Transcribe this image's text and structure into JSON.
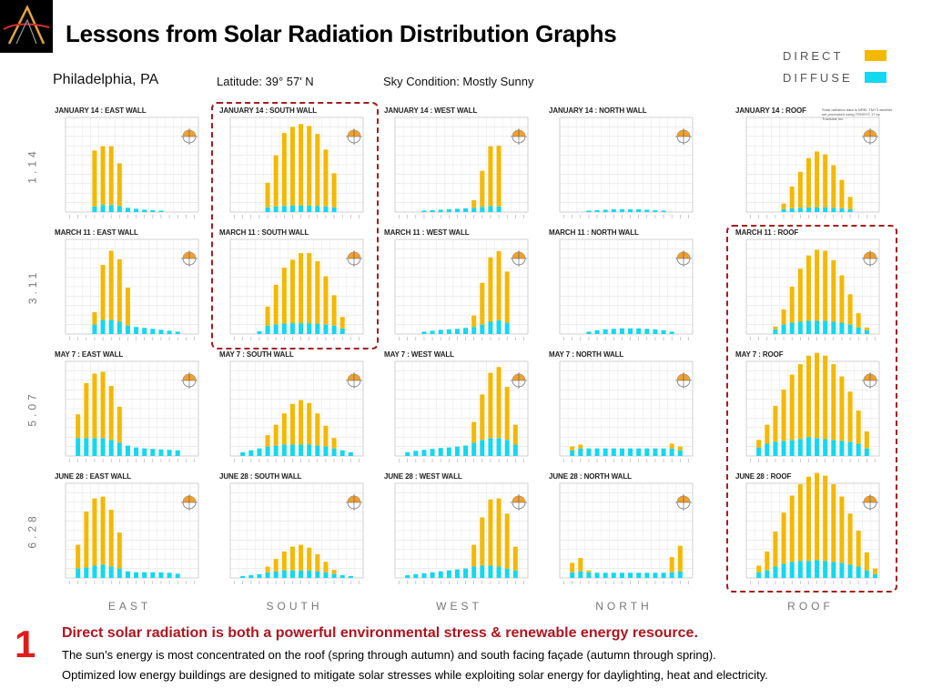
{
  "title": "Lessons from Solar Radiation Distribution Graphs",
  "legend": [
    {
      "label": "DIRECT",
      "color": "#F5B800"
    },
    {
      "label": "DIFFUSE",
      "color": "#14D7F0"
    }
  ],
  "header": {
    "city": "Philadelphia, PA",
    "latitude": "Latitude: 39° 57' N",
    "sky": "Sky Condition: Mostly Sunny"
  },
  "roof_note": "Solar radiation data is NREL TMY3 weather set processed using TRNSYS 17 by Transolar Inc.",
  "row_labels": [
    "1.14",
    "3.11",
    "5.07",
    "6.28"
  ],
  "column_labels": [
    "EAST",
    "SOUTH",
    "WEST",
    "NORTH",
    "ROOF"
  ],
  "message": {
    "number": "1",
    "headline": "Direct solar radiation is both a powerful environmental stress & renewable energy resource.",
    "line1": "The sun’s energy is most concentrated on the roof (spring through autumn) and south facing façade (autumn through spring).",
    "line2": "Optimized low energy buildings are designed to mitigate solar stresses while exploiting solar energy for daylighting, heat and electricity."
  },
  "colors": {
    "direct": "#F5B800",
    "diffuse": "#14D7F0",
    "highlight": "#A61C1C",
    "accent": "#E01B1B"
  },
  "chart_data": [
    {
      "type": "bar",
      "title": "JANUARY 14 : EAST WALL",
      "ylim": [
        0,
        1000
      ],
      "series": [
        {
          "name": "DIRECT",
          "values": [
            0,
            0,
            0,
            590,
            620,
            620,
            450,
            0,
            0,
            0,
            0,
            0,
            0,
            0,
            0,
            0
          ]
        },
        {
          "name": "DIFFUSE",
          "values": [
            0,
            0,
            0,
            60,
            75,
            75,
            65,
            45,
            35,
            25,
            20,
            15,
            0,
            0,
            0,
            0
          ]
        }
      ]
    },
    {
      "type": "bar",
      "title": "JANUARY 14 : SOUTH WALL",
      "ylim": [
        0,
        1000
      ],
      "series": [
        {
          "name": "DIRECT",
          "values": [
            0,
            0,
            0,
            0,
            260,
            540,
            770,
            830,
            860,
            840,
            760,
            600,
            360,
            0,
            0,
            0
          ]
        },
        {
          "name": "DIFFUSE",
          "values": [
            0,
            0,
            0,
            0,
            50,
            60,
            65,
            70,
            70,
            70,
            65,
            60,
            50,
            0,
            0,
            0
          ]
        }
      ]
    },
    {
      "type": "bar",
      "title": "JANUARY 14 : WEST WALL",
      "ylim": [
        0,
        1000
      ],
      "series": [
        {
          "name": "DIRECT",
          "values": [
            0,
            0,
            0,
            0,
            0,
            0,
            0,
            0,
            0,
            80,
            380,
            630,
            640,
            0,
            0,
            0
          ]
        },
        {
          "name": "DIFFUSE",
          "values": [
            0,
            0,
            0,
            15,
            20,
            25,
            30,
            35,
            40,
            45,
            55,
            65,
            60,
            0,
            0,
            0
          ]
        }
      ]
    },
    {
      "type": "bar",
      "title": "JANUARY 14 : NORTH WALL",
      "ylim": [
        0,
        1000
      ],
      "series": [
        {
          "name": "DIRECT",
          "values": [
            0,
            0,
            0,
            0,
            0,
            0,
            0,
            0,
            0,
            0,
            0,
            0,
            0,
            0,
            0,
            0
          ]
        },
        {
          "name": "DIFFUSE",
          "values": [
            0,
            0,
            0,
            15,
            20,
            25,
            30,
            30,
            30,
            30,
            25,
            20,
            15,
            0,
            0,
            0
          ]
        }
      ]
    },
    {
      "type": "bar",
      "title": "JANUARY 14 : ROOF",
      "ylim": [
        0,
        1000
      ],
      "series": [
        {
          "name": "DIRECT",
          "values": [
            0,
            0,
            0,
            0,
            60,
            230,
            380,
            520,
            590,
            560,
            450,
            300,
            130,
            0,
            0,
            0
          ]
        },
        {
          "name": "DIFFUSE",
          "values": [
            0,
            0,
            0,
            0,
            30,
            40,
            45,
            50,
            50,
            50,
            45,
            40,
            30,
            0,
            0,
            0
          ]
        }
      ]
    },
    {
      "type": "bar",
      "title": "MARCH 11 : EAST WALL",
      "ylim": [
        0,
        1000
      ],
      "series": [
        {
          "name": "DIRECT",
          "values": [
            0,
            0,
            0,
            130,
            580,
            730,
            660,
            400,
            0,
            0,
            0,
            0,
            0,
            0,
            0,
            0
          ]
        },
        {
          "name": "DIFFUSE",
          "values": [
            0,
            0,
            0,
            100,
            150,
            150,
            130,
            90,
            75,
            65,
            55,
            45,
            35,
            25,
            0,
            0
          ]
        }
      ]
    },
    {
      "type": "bar",
      "title": "MARCH 11 : SOUTH WALL",
      "ylim": [
        0,
        1000
      ],
      "series": [
        {
          "name": "DIRECT",
          "values": [
            0,
            0,
            0,
            0,
            200,
            420,
            590,
            670,
            740,
            740,
            660,
            510,
            320,
            120,
            0,
            0
          ]
        },
        {
          "name": "DIFFUSE",
          "values": [
            0,
            0,
            0,
            30,
            90,
            100,
            110,
            115,
            115,
            115,
            110,
            100,
            90,
            60,
            0,
            0
          ]
        }
      ]
    },
    {
      "type": "bar",
      "title": "MARCH 11 : WEST WALL",
      "ylim": [
        0,
        1000
      ],
      "series": [
        {
          "name": "DIRECT",
          "values": [
            0,
            0,
            0,
            0,
            0,
            0,
            0,
            0,
            0,
            120,
            440,
            680,
            730,
            540,
            0,
            0
          ]
        },
        {
          "name": "DIFFUSE",
          "values": [
            0,
            0,
            0,
            25,
            35,
            45,
            50,
            55,
            65,
            75,
            100,
            130,
            145,
            120,
            0,
            0
          ]
        }
      ]
    },
    {
      "type": "bar",
      "title": "MARCH 11 : NORTH WALL",
      "ylim": [
        0,
        1000
      ],
      "series": [
        {
          "name": "DIRECT",
          "values": [
            0,
            0,
            0,
            0,
            0,
            0,
            0,
            0,
            0,
            0,
            0,
            0,
            0,
            0,
            0,
            0
          ]
        },
        {
          "name": "DIFFUSE",
          "values": [
            0,
            0,
            0,
            25,
            40,
            50,
            55,
            60,
            60,
            60,
            55,
            50,
            40,
            25,
            0,
            0
          ]
        }
      ]
    },
    {
      "type": "bar",
      "title": "MARCH 11 : ROOF",
      "ylim": [
        0,
        1000
      ],
      "series": [
        {
          "name": "DIRECT",
          "values": [
            0,
            0,
            0,
            30,
            160,
            380,
            560,
            690,
            750,
            740,
            650,
            500,
            320,
            150,
            30,
            0
          ]
        },
        {
          "name": "DIFFUSE",
          "values": [
            0,
            0,
            0,
            50,
            100,
            120,
            130,
            140,
            140,
            140,
            130,
            120,
            100,
            70,
            40,
            0
          ]
        }
      ]
    },
    {
      "type": "bar",
      "title": "MAY 7 : EAST WALL",
      "ylim": [
        0,
        1000
      ],
      "series": [
        {
          "name": "DIRECT",
          "values": [
            0,
            250,
            580,
            680,
            700,
            570,
            380,
            0,
            0,
            0,
            0,
            0,
            0,
            0,
            0,
            0
          ]
        },
        {
          "name": "DIFFUSE",
          "values": [
            0,
            190,
            190,
            190,
            190,
            170,
            140,
            110,
            90,
            80,
            75,
            70,
            65,
            60,
            0,
            0
          ]
        }
      ]
    },
    {
      "type": "bar",
      "title": "MAY 7 : SOUTH WALL",
      "ylim": [
        0,
        1000
      ],
      "series": [
        {
          "name": "DIRECT",
          "values": [
            0,
            0,
            0,
            0,
            120,
            220,
            330,
            430,
            470,
            440,
            340,
            220,
            110,
            0,
            0,
            0
          ]
        },
        {
          "name": "DIFFUSE",
          "values": [
            0,
            40,
            60,
            80,
            100,
            110,
            120,
            120,
            120,
            120,
            110,
            100,
            80,
            60,
            40,
            0
          ]
        }
      ]
    },
    {
      "type": "bar",
      "title": "MAY 7 : WEST WALL",
      "ylim": [
        0,
        1000
      ],
      "series": [
        {
          "name": "DIRECT",
          "values": [
            0,
            0,
            0,
            0,
            0,
            0,
            0,
            0,
            0,
            220,
            480,
            690,
            750,
            560,
            210,
            0
          ]
        },
        {
          "name": "DIFFUSE",
          "values": [
            0,
            40,
            55,
            65,
            75,
            85,
            90,
            100,
            110,
            140,
            170,
            190,
            190,
            170,
            120,
            0
          ]
        }
      ]
    },
    {
      "type": "bar",
      "title": "MAY 7 : NORTH WALL",
      "ylim": [
        0,
        1000
      ],
      "series": [
        {
          "name": "DIRECT",
          "values": [
            0,
            40,
            40,
            0,
            0,
            0,
            0,
            0,
            0,
            0,
            0,
            0,
            0,
            50,
            40,
            0
          ]
        },
        {
          "name": "DIFFUSE",
          "values": [
            0,
            60,
            80,
            80,
            80,
            80,
            80,
            80,
            80,
            80,
            80,
            80,
            80,
            80,
            60,
            0
          ]
        }
      ]
    },
    {
      "type": "bar",
      "title": "MAY 7 : ROOF",
      "ylim": [
        0,
        1000
      ],
      "series": [
        {
          "name": "DIRECT",
          "values": [
            0,
            80,
            200,
            380,
            540,
            690,
            790,
            860,
            900,
            880,
            800,
            680,
            530,
            350,
            180,
            0
          ]
        },
        {
          "name": "DIFFUSE",
          "values": [
            0,
            90,
            130,
            150,
            160,
            170,
            180,
            200,
            190,
            180,
            170,
            160,
            150,
            130,
            80,
            0
          ]
        }
      ]
    },
    {
      "type": "bar",
      "title": "JUNE 28 : EAST WALL",
      "ylim": [
        0,
        1000
      ],
      "series": [
        {
          "name": "DIRECT",
          "values": [
            0,
            250,
            590,
            710,
            720,
            600,
            380,
            0,
            0,
            0,
            0,
            0,
            0,
            0,
            0,
            0
          ]
        },
        {
          "name": "DIFFUSE",
          "values": [
            0,
            100,
            110,
            130,
            140,
            120,
            100,
            70,
            60,
            60,
            60,
            60,
            55,
            45,
            0,
            0
          ]
        }
      ]
    },
    {
      "type": "bar",
      "title": "JUNE 28 : SOUTH WALL",
      "ylim": [
        0,
        1000
      ],
      "series": [
        {
          "name": "DIRECT",
          "values": [
            0,
            0,
            0,
            0,
            60,
            130,
            200,
            250,
            270,
            240,
            180,
            110,
            40,
            0,
            0,
            0
          ]
        },
        {
          "name": "DIFFUSE",
          "values": [
            0,
            20,
            30,
            40,
            60,
            70,
            80,
            80,
            80,
            80,
            70,
            60,
            45,
            30,
            20,
            0
          ]
        }
      ]
    },
    {
      "type": "bar",
      "title": "JUNE 28 : WEST WALL",
      "ylim": [
        0,
        1000
      ],
      "series": [
        {
          "name": "DIRECT",
          "values": [
            0,
            0,
            0,
            0,
            0,
            0,
            0,
            0,
            0,
            230,
            510,
            700,
            720,
            580,
            250,
            0
          ]
        },
        {
          "name": "DIFFUSE",
          "values": [
            0,
            30,
            40,
            50,
            60,
            70,
            80,
            90,
            100,
            120,
            130,
            130,
            120,
            100,
            80,
            0
          ]
        }
      ]
    },
    {
      "type": "bar",
      "title": "JUNE 28 : NORTH WALL",
      "ylim": [
        0,
        1000
      ],
      "series": [
        {
          "name": "DIRECT",
          "values": [
            0,
            100,
            140,
            20,
            0,
            0,
            0,
            0,
            0,
            0,
            0,
            0,
            0,
            160,
            270,
            0
          ]
        },
        {
          "name": "DIFFUSE",
          "values": [
            0,
            60,
            70,
            60,
            55,
            55,
            55,
            55,
            55,
            55,
            55,
            55,
            55,
            60,
            70,
            0
          ]
        }
      ]
    },
    {
      "type": "bar",
      "title": "JUNE 28 : ROOF",
      "ylim": [
        0,
        1000
      ],
      "series": [
        {
          "name": "DIRECT",
          "values": [
            0,
            70,
            200,
            370,
            540,
            700,
            810,
            890,
            920,
            900,
            820,
            700,
            540,
            380,
            190,
            60
          ]
        },
        {
          "name": "DIFFUSE",
          "values": [
            0,
            60,
            80,
            120,
            150,
            170,
            180,
            180,
            190,
            180,
            170,
            160,
            140,
            120,
            80,
            40
          ]
        }
      ]
    }
  ]
}
